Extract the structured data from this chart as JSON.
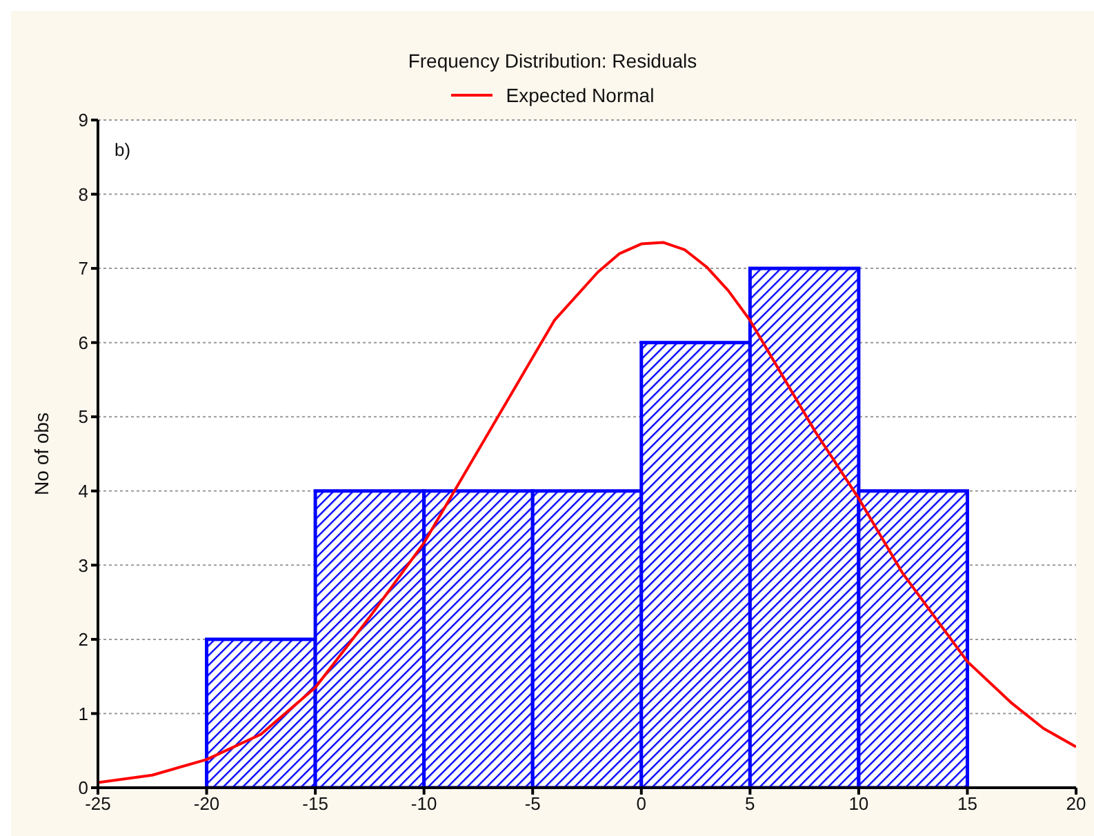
{
  "chart_data": {
    "type": "histogram",
    "title": "Frequency Distribution: Residuals",
    "ylabel": "No of obs",
    "annotations": [
      "b)"
    ],
    "bins": [
      -20,
      -15,
      -10,
      -5,
      0,
      5,
      10,
      15
    ],
    "values": [
      2,
      4,
      4,
      4,
      6,
      7,
      4
    ],
    "color": "#0000ff",
    "series": [
      {
        "type": "line",
        "name": "Expected Normal",
        "color": "#ff0000",
        "x": [
          -25,
          -22.5,
          -20,
          -17.5,
          -15,
          -12.5,
          -10,
          -8,
          -6,
          -4,
          -2,
          -1,
          0,
          1,
          2,
          3,
          4,
          5,
          6,
          8,
          10,
          12,
          14,
          15,
          17,
          18.5,
          20
        ],
        "values": [
          0.07,
          0.17,
          0.38,
          0.72,
          1.35,
          2.3,
          3.3,
          4.3,
          5.3,
          6.3,
          6.95,
          7.2,
          7.33,
          7.35,
          7.25,
          7.02,
          6.7,
          6.3,
          5.8,
          4.8,
          3.9,
          2.9,
          2.1,
          1.7,
          1.15,
          0.8,
          0.55
        ]
      }
    ],
    "xlim": [
      -25,
      20
    ],
    "xticks": [
      -25,
      -20,
      -15,
      -10,
      -5,
      0,
      5,
      10,
      15,
      20
    ],
    "ylim": [
      0,
      9
    ],
    "yticks": [
      0,
      1,
      2,
      3,
      4,
      5,
      6,
      7,
      8,
      9
    ],
    "grid": "y",
    "legend": "top",
    "marker": "none",
    "line_style": "solid"
  }
}
